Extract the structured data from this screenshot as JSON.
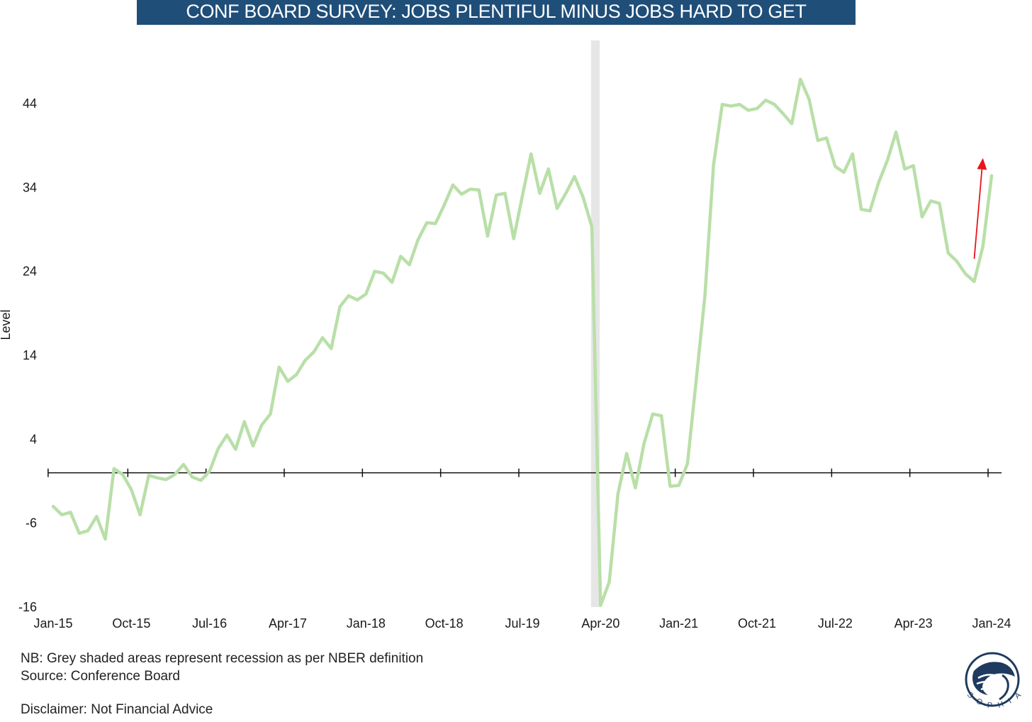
{
  "title": "CONF BOARD SURVEY: JOBS PLENTIFUL MINUS JOBS HARD TO GET",
  "notes": {
    "nb": "NB: Grey shaded areas represent recession as per NBER definition",
    "source": "Source: Conference Board",
    "disclaimer": "Disclaimer: Not Financial Advice"
  },
  "logo": {
    "icon": "sophia-logo",
    "text": "SOPHIA"
  },
  "colors": {
    "series": "#b9dfa8",
    "recession": "#e6e6e6",
    "arrow": "#e8141c",
    "title_bg": "#1f4e79"
  },
  "chart_data": {
    "type": "line",
    "title": "CONF BOARD SURVEY: JOBS PLENTIFUL MINUS JOBS HARD TO GET",
    "xlabel": "",
    "ylabel": "Level",
    "ylim": [
      -16,
      49
    ],
    "yticks": [
      -16,
      -6,
      4,
      14,
      24,
      34,
      44
    ],
    "x_ticklabels": [
      "Jan-15",
      "Oct-15",
      "Jul-16",
      "Apr-17",
      "Jan-18",
      "Oct-18",
      "Jul-19",
      "Apr-20",
      "Jan-21",
      "Oct-21",
      "Jul-22",
      "Apr-23",
      "Jan-24"
    ],
    "x_tick_months": [
      0,
      9,
      18,
      27,
      36,
      45,
      54,
      63,
      72,
      81,
      90,
      99,
      108
    ],
    "xlim_months": [
      -0.5,
      108.5
    ],
    "start": "Jan-15",
    "grid": false,
    "legend": "none",
    "recession_shading": {
      "from": "Mar-20",
      "to": "Apr-20"
    },
    "annotation": {
      "type": "arrow",
      "color": "red",
      "direction": "up",
      "from_month": 106,
      "from_y": 25.5,
      "to_month": 107,
      "to_y": 37.5
    },
    "series": [
      {
        "values": [
          -4.0,
          -5.0,
          -4.7,
          -7.2,
          -6.9,
          -5.2,
          -7.9,
          0.5,
          -0.2,
          -2.0,
          -5.0,
          -0.3,
          -0.6,
          -0.8,
          -0.2,
          1.0,
          -0.5,
          -0.9,
          0.2,
          2.9,
          4.5,
          2.8,
          6.1,
          3.2,
          5.7,
          7.0,
          12.6,
          10.9,
          11.7,
          13.4,
          14.4,
          16.1,
          14.8,
          19.8,
          21.1,
          20.6,
          21.3,
          24.0,
          23.8,
          22.7,
          25.8,
          24.8,
          27.8,
          29.8,
          29.7,
          31.9,
          34.3,
          33.2,
          33.8,
          33.7,
          28.2,
          33.1,
          33.3,
          27.9,
          33.0,
          38.0,
          33.3,
          36.2,
          31.5,
          33.3,
          35.3,
          32.8,
          29.3,
          -15.8,
          -13.0,
          -2.5,
          2.3,
          -1.8,
          3.5,
          7.0,
          6.8,
          -1.6,
          -1.5,
          1.1,
          11.0,
          21.0,
          36.7,
          43.9,
          43.7,
          43.9,
          43.2,
          43.4,
          44.4,
          43.9,
          42.8,
          41.6,
          46.9,
          44.5,
          39.6,
          39.9,
          36.5,
          35.8,
          38.0,
          31.4,
          31.2,
          34.6,
          37.2,
          40.6,
          36.2,
          36.6,
          30.5,
          32.4,
          32.1,
          26.2,
          25.2,
          23.7,
          22.8,
          27.0,
          35.4
        ]
      }
    ]
  }
}
